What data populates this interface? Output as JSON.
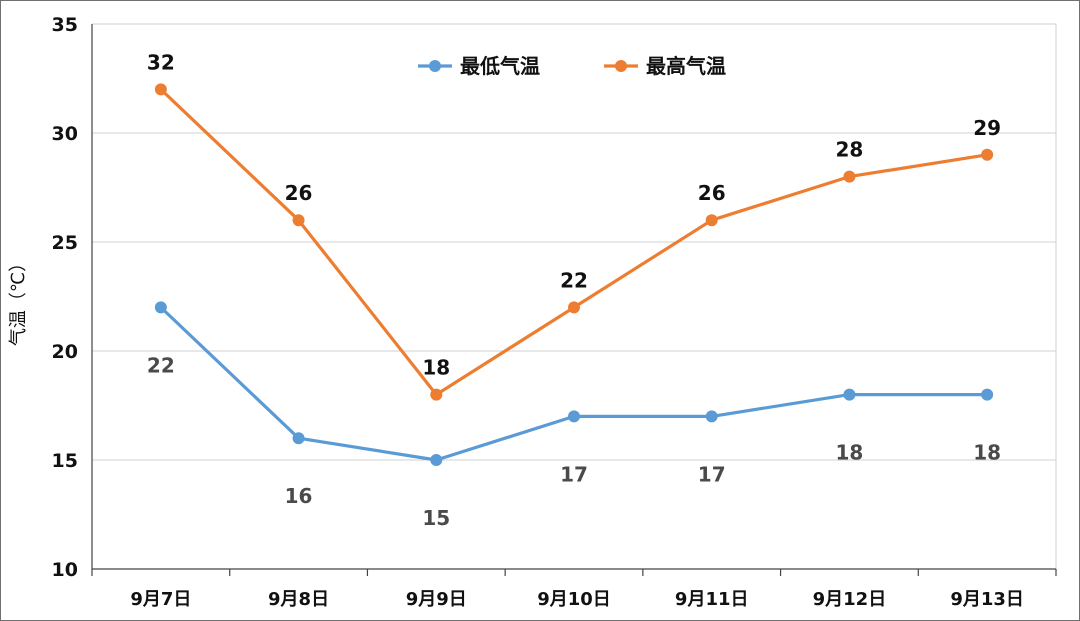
{
  "chart_data": {
    "type": "line",
    "title": "",
    "xlabel": "",
    "ylabel": "气温（℃）",
    "ylim": [
      10,
      35
    ],
    "yticks": [
      10,
      15,
      20,
      25,
      30,
      35
    ],
    "grid": "horizontal",
    "legend_position": "top-center",
    "categories": [
      "9月7日",
      "9月8日",
      "9月9日",
      "9月10日",
      "9月11日",
      "9月12日",
      "9月13日"
    ],
    "series": [
      {
        "name": "最低气温",
        "color": "#5b9bd5",
        "values": [
          22,
          16,
          15,
          17,
          17,
          18,
          18
        ],
        "label_position": "below"
      },
      {
        "name": "最高气温",
        "color": "#ed7d31",
        "values": [
          32,
          26,
          18,
          22,
          26,
          28,
          29
        ],
        "label_position": "above"
      }
    ]
  }
}
